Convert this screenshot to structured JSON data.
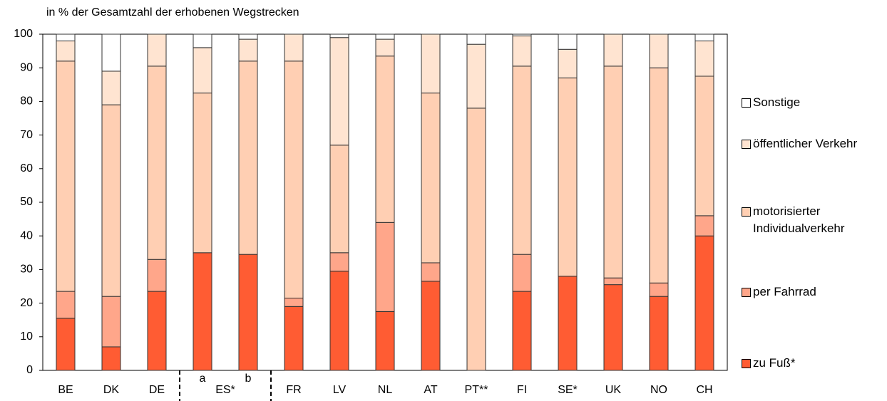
{
  "chart_data": {
    "type": "stacked_bar",
    "title": "in % der Gesamtzahl der erhobenen Wegstrecken",
    "categories": [
      "BE",
      "DK",
      "DE",
      "a",
      "b",
      "FR",
      "LV",
      "NL",
      "AT",
      "PT**",
      "FI",
      "SE*",
      "UK",
      "NO",
      "CH"
    ],
    "group_label": "ES*",
    "series": [
      {
        "name": "zu Fuß*",
        "color": "#ff5c33",
        "values": [
          15.5,
          7,
          23.5,
          35,
          34.5,
          19,
          29.5,
          17.5,
          26.5,
          0,
          23.5,
          28,
          25.5,
          22,
          40
        ]
      },
      {
        "name": "per Fahrrad",
        "color": "#ffa68a",
        "values": [
          8,
          15,
          9.5,
          0,
          0,
          2.5,
          5.5,
          26.5,
          5.5,
          0,
          11,
          0,
          2,
          4,
          6
        ]
      },
      {
        "name": "motorisierter Individualverkehr",
        "color": "#ffcfb3",
        "values": [
          68.5,
          57,
          57.5,
          47.5,
          57.5,
          70.5,
          32,
          49.5,
          50.5,
          78,
          56,
          59,
          63,
          64,
          41.5
        ]
      },
      {
        "name": "öffentlicher Verkehr",
        "color": "#ffe4d1",
        "values": [
          6,
          10,
          9.5,
          13.5,
          6.5,
          8,
          32,
          5,
          17.5,
          19,
          9,
          8.5,
          9.5,
          10,
          10.5
        ]
      },
      {
        "name": "Sonstige",
        "color": "#ffffff",
        "values": [
          2,
          11,
          0,
          4,
          1.5,
          0,
          1,
          1.5,
          0,
          3,
          0.5,
          4.5,
          0,
          0,
          2
        ]
      }
    ],
    "ylim": [
      0,
      100
    ],
    "yticks": [
      0,
      10,
      20,
      30,
      40,
      50,
      60,
      70,
      80,
      90,
      100
    ],
    "legend": "right"
  }
}
